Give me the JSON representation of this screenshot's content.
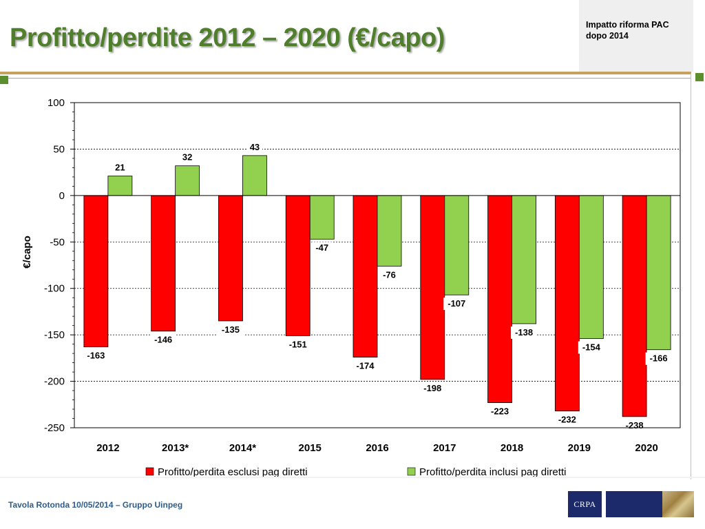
{
  "slide": {
    "title": "Profitto/perdite 2012 – 2020 (€/capo)",
    "side_note_line1": "Impatto riforma PAC",
    "side_note_line2": "dopo 2014",
    "footer": "Tavola Rotonda  10/05/2014 – Gruppo Uinpeg",
    "logo_text": "CRPA",
    "colors": {
      "title": "#4f7f2a",
      "footer": "#2e5c8a",
      "accent_bar": "#c6a15b",
      "accent_square": "#5b8f2d",
      "logo_navy": "#1c2a6b"
    }
  },
  "chart_data": {
    "type": "bar",
    "title": "",
    "xlabel": "",
    "ylabel": "€/capo",
    "ylim": [
      -250,
      100
    ],
    "yticks": [
      100,
      50,
      0,
      -50,
      -100,
      -150,
      -200,
      -250
    ],
    "grid": true,
    "legend_position": "bottom",
    "categories": [
      "2012",
      "2013*",
      "2014*",
      "2015",
      "2016",
      "2017",
      "2018",
      "2019",
      "2020"
    ],
    "series": [
      {
        "name": "Profitto/perdita esclusi pag diretti",
        "color": "#ff0000",
        "values": [
          -163,
          -146,
          -135,
          -151,
          -174,
          -198,
          -223,
          -232,
          -238
        ],
        "labels": [
          "-163",
          "-146",
          "-135",
          "-151",
          "-174",
          "-198",
          "-223",
          "-232",
          "-238"
        ]
      },
      {
        "name": "Profitto/perdita inclusi pag diretti",
        "color": "#92d050",
        "values": [
          21,
          32,
          43,
          -47,
          -76,
          -107,
          -138,
          -154,
          -166
        ],
        "labels": [
          "21",
          "32",
          "43",
          "-47",
          "-76",
          "-107",
          "-138",
          "-154",
          "-166"
        ]
      }
    ]
  }
}
